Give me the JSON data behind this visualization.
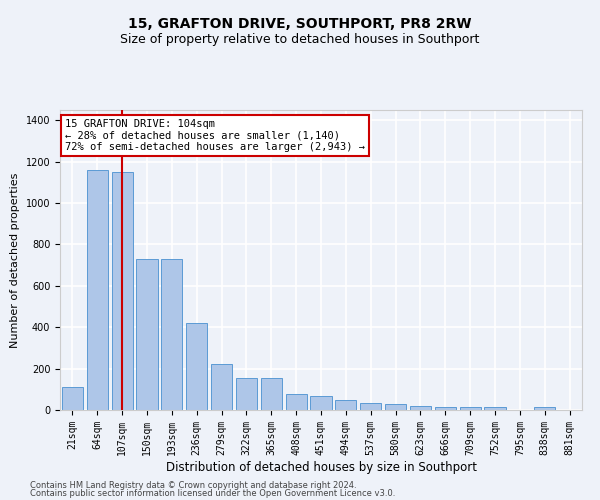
{
  "title": "15, GRAFTON DRIVE, SOUTHPORT, PR8 2RW",
  "subtitle": "Size of property relative to detached houses in Southport",
  "xlabel": "Distribution of detached houses by size in Southport",
  "ylabel": "Number of detached properties",
  "footer1": "Contains HM Land Registry data © Crown copyright and database right 2024.",
  "footer2": "Contains public sector information licensed under the Open Government Licence v3.0.",
  "categories": [
    "21sqm",
    "64sqm",
    "107sqm",
    "150sqm",
    "193sqm",
    "236sqm",
    "279sqm",
    "322sqm",
    "365sqm",
    "408sqm",
    "451sqm",
    "494sqm",
    "537sqm",
    "580sqm",
    "623sqm",
    "666sqm",
    "709sqm",
    "752sqm",
    "795sqm",
    "838sqm",
    "881sqm"
  ],
  "values": [
    110,
    1160,
    1150,
    730,
    730,
    420,
    220,
    155,
    155,
    75,
    70,
    50,
    35,
    30,
    20,
    15,
    15,
    15,
    0,
    15,
    0
  ],
  "bar_color": "#aec6e8",
  "bar_edge_color": "#5b9bd5",
  "vline_x_index": 2,
  "vline_color": "#cc0000",
  "annotation_line1": "15 GRAFTON DRIVE: 104sqm",
  "annotation_line2": "← 28% of detached houses are smaller (1,140)",
  "annotation_line3": "72% of semi-detached houses are larger (2,943) →",
  "annotation_box_color": "#ffffff",
  "annotation_box_edge_color": "#cc0000",
  "ylim": [
    0,
    1450
  ],
  "bg_color": "#eef2f9",
  "grid_color": "#ffffff",
  "title_fontsize": 10,
  "subtitle_fontsize": 9,
  "ylabel_fontsize": 8,
  "xlabel_fontsize": 8.5,
  "tick_fontsize": 7,
  "footer_fontsize": 6,
  "annotation_fontsize": 7.5
}
